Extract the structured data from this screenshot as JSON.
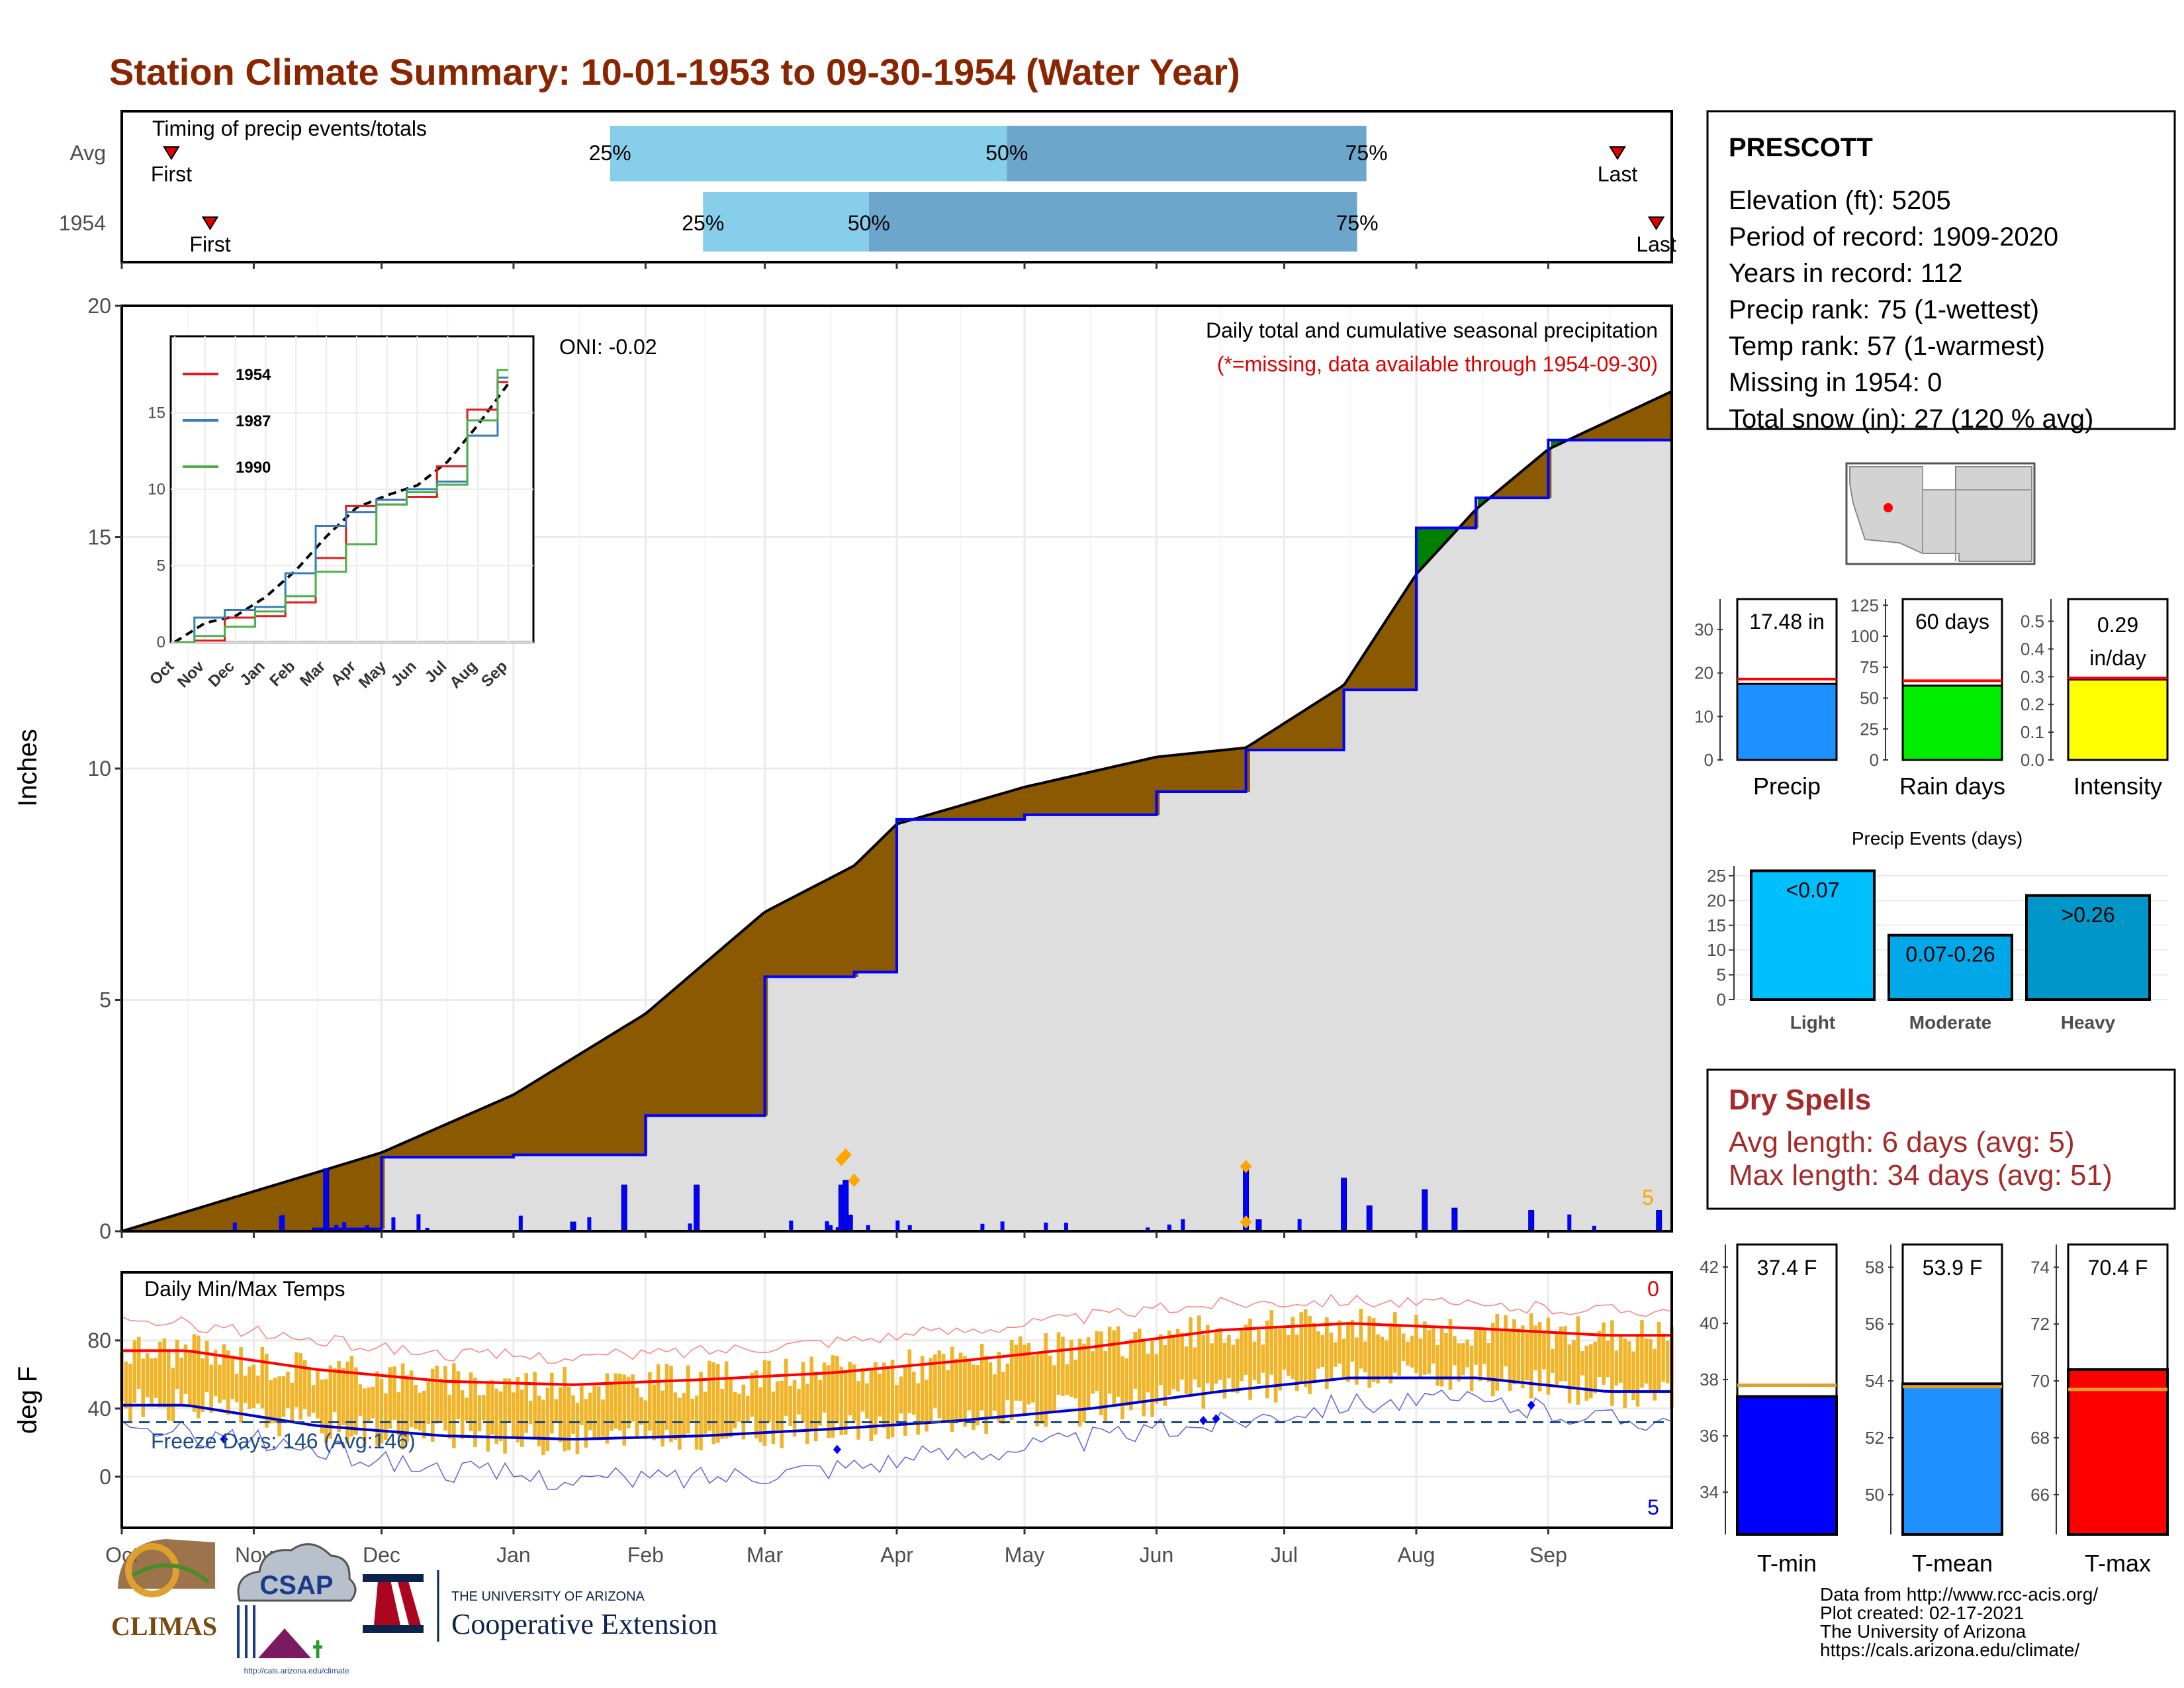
{
  "title": "Station Climate Summary: 10-01-1953 to 09-30-1954 (Water Year)",
  "timing": {
    "title": "Timing of precip events/totals",
    "rows": [
      {
        "label": "Avg",
        "first_label": "First",
        "last_label": "Last",
        "p25_label": "25%",
        "p50_label": "50%",
        "p75_label": "75%",
        "first": 0.032,
        "p25": 0.315,
        "p50": 0.571,
        "p75": 0.803,
        "last": 0.965
      },
      {
        "label": "1954",
        "first_label": "First",
        "last_label": "Last",
        "p25_label": "25%",
        "p50_label": "50%",
        "p75_label": "75%",
        "first": 0.057,
        "p25": 0.375,
        "p50": 0.482,
        "p75": 0.797,
        "last": 0.99
      }
    ]
  },
  "precip_panel": {
    "ylabel": "Inches",
    "caption1": "Daily total and cumulative seasonal precipitation",
    "caption2": "(*=missing, data available through 1954-09-30)",
    "oni_label": "ONI: -0.02",
    "corner_count": "5",
    "colors": {
      "above": "#008000",
      "below": "#8b5a00",
      "fill": "#dedede",
      "line": "#0000ff"
    }
  },
  "inset": {
    "legend": [
      {
        "name": "1954",
        "color": "#e41a1c"
      },
      {
        "name": "1987",
        "color": "#377eb8"
      },
      {
        "name": "1990",
        "color": "#4daf4a"
      }
    ],
    "months": [
      "Oct",
      "Nov",
      "Dec",
      "Jan",
      "Feb",
      "Mar",
      "Apr",
      "May",
      "Jun",
      "Jul",
      "Aug",
      "Sep"
    ],
    "yticks": [
      "0",
      "5",
      "10",
      "15"
    ]
  },
  "temp_panel": {
    "ylabel": "deg F",
    "title": "Daily Min/Max Temps",
    "freeze_label": "Freeze Days: 146 (Avg:146)",
    "corner_top": "0",
    "corner_bottom": "5",
    "yticks": [
      "0",
      "40",
      "80"
    ]
  },
  "months": [
    "Oct",
    "Nov",
    "Dec",
    "Jan",
    "Feb",
    "Mar",
    "Apr",
    "May",
    "Jun",
    "Jul",
    "Aug",
    "Sep"
  ],
  "station": {
    "name": "PRESCOTT",
    "lines": [
      "Elevation (ft): 5205",
      "Period of record: 1909-2020",
      "Years in record: 112",
      "Precip rank: 75 (1-wettest)",
      "Temp rank: 57 (1-warmest)",
      "Missing in 1954: 0",
      "Total snow (in): 27 (120 % avg)"
    ]
  },
  "summary_bars": [
    {
      "name": "Precip",
      "value_label": "17.48 in",
      "value": 17.48,
      "avg": 18.6,
      "max": 37,
      "ticks": [
        "0",
        "10",
        "20",
        "30"
      ],
      "color": "#1e90ff"
    },
    {
      "name": "Rain days",
      "value_label": "60 days",
      "value": 60,
      "avg": 64,
      "max": 130,
      "ticks": [
        "0",
        "25",
        "50",
        "75",
        "100",
        "125"
      ],
      "color": "#00ee00"
    },
    {
      "name": "Intensity",
      "value_label": "0.29 in/day",
      "value": 0.29,
      "avg": 0.295,
      "max": 0.58,
      "ticks": [
        "0.0",
        "0.1",
        "0.2",
        "0.3",
        "0.4",
        "0.5"
      ],
      "color": "#ffff00"
    }
  ],
  "events": {
    "title": "Precip Events (days)",
    "bars": [
      {
        "name": "Light",
        "label": "<0.07",
        "value": 26,
        "color": "#00bfff"
      },
      {
        "name": "Moderate",
        "label": "0.07-0.26",
        "value": 13,
        "color": "#00a8e8"
      },
      {
        "name": "Heavy",
        "label": ">0.26",
        "value": 21,
        "color": "#0096c8"
      }
    ],
    "ticks": [
      "0",
      "5",
      "10",
      "15",
      "20",
      "25"
    ]
  },
  "dry_spells": {
    "title": "Dry Spells",
    "avg_line": "Avg length: 6 days (avg: 5)",
    "max_line": "Max length: 34 days (avg: 51)"
  },
  "temp_bars": [
    {
      "name": "T-min",
      "value_label": "37.4 F",
      "value": 37.4,
      "avg": 37.8,
      "min": 32.5,
      "max": 42.8,
      "ticks": [
        "34",
        "36",
        "38",
        "40",
        "42"
      ],
      "color": "#0000ff"
    },
    {
      "name": "T-mean",
      "value_label": "53.9 F",
      "value": 53.9,
      "avg": 53.8,
      "min": 48.6,
      "max": 58.8,
      "ticks": [
        "50",
        "52",
        "54",
        "56",
        "58"
      ],
      "color": "#1e90ff"
    },
    {
      "name": "T-max",
      "value_label": "70.4 F",
      "value": 70.4,
      "avg": 69.7,
      "min": 64.6,
      "max": 74.8,
      "ticks": [
        "66",
        "68",
        "70",
        "72",
        "74"
      ],
      "color": "#ff0000"
    }
  ],
  "footer": {
    "lines": [
      "Data from http://www.rcc-acis.org/",
      "Plot created: 02-17-2021",
      "The University of Arizona",
      "https://cals.arizona.edu/climate/"
    ],
    "logos": {
      "climas": "CLIMAS",
      "csap": "CSAP",
      "csap_url": "http://cals.arizona.edu/climate",
      "ua_small": "THE UNIVERSITY OF ARIZONA",
      "ua_big": "Cooperative Extension"
    }
  },
  "chart_data": [
    {
      "type": "area",
      "title": "Daily total and cumulative seasonal precipitation",
      "ylabel": "Inches",
      "ylim": [
        0,
        20
      ],
      "x_dates": [
        "1953-10-01",
        "1953-11-15",
        "1953-12-01",
        "1954-01-01",
        "1954-02-01",
        "1954-03-01",
        "1954-03-22",
        "1954-04-01",
        "1954-05-01",
        "1954-06-01",
        "1954-06-22",
        "1954-07-15",
        "1954-08-01",
        "1954-08-15",
        "1954-09-01",
        "1954-09-30"
      ],
      "series": [
        {
          "name": "avg cumulative",
          "values": [
            0,
            1.25,
            1.7,
            2.95,
            4.7,
            6.9,
            7.9,
            8.8,
            9.6,
            10.25,
            10.45,
            11.8,
            14.2,
            15.6,
            16.9,
            18.15
          ]
        },
        {
          "name": "cumulative",
          "values": [
            0,
            0.05,
            1.6,
            1.65,
            2.5,
            5.5,
            5.6,
            8.9,
            9.0,
            9.5,
            10.4,
            11.7,
            15.2,
            15.85,
            17.1,
            17.48
          ]
        }
      ]
    },
    {
      "type": "bar",
      "title": "Daily precip",
      "x_dates": [
        "1953-11-18",
        "1954-01-15",
        "1954-01-27",
        "1954-02-13",
        "1954-03-19",
        "1954-03-20",
        "1954-03-21",
        "1954-06-22",
        "1954-06-25",
        "1954-07-15",
        "1954-07-21",
        "1954-08-03",
        "1954-08-10",
        "1954-08-28",
        "1954-09-27"
      ],
      "values": [
        1.35,
        0.2,
        1.0,
        1.0,
        1.0,
        1.1,
        0.35,
        1.35,
        0.25,
        1.15,
        0.55,
        0.9,
        0.5,
        0.45,
        0.45
      ]
    },
    {
      "type": "line",
      "title": "Daily Min/Max Temps",
      "ylabel": "deg F",
      "months": [
        "Oct",
        "Nov",
        "Dec",
        "Jan",
        "Feb",
        "Mar",
        "Apr",
        "May",
        "Jun",
        "Jul",
        "Aug",
        "Sep"
      ],
      "series": [
        {
          "name": "avg max",
          "values": [
            74,
            63,
            56,
            54,
            57,
            61,
            68,
            76,
            86,
            90,
            87,
            83
          ]
        },
        {
          "name": "avg min",
          "values": [
            42,
            30,
            24,
            22,
            24,
            28,
            33,
            40,
            50,
            58,
            58,
            50
          ]
        },
        {
          "name": "record max",
          "values": [
            90,
            80,
            72,
            70,
            74,
            80,
            86,
            94,
            102,
            104,
            100,
            98
          ]
        },
        {
          "name": "record min",
          "values": [
            26,
            16,
            4,
            -2,
            0,
            6,
            14,
            22,
            32,
            44,
            44,
            34
          ]
        }
      ]
    },
    {
      "type": "line",
      "title": "inset cumulative",
      "categories": [
        "Oct",
        "Nov",
        "Dec",
        "Jan",
        "Feb",
        "Mar",
        "Apr",
        "May",
        "Jun",
        "Jul",
        "Aug",
        "Sep"
      ],
      "series": [
        {
          "name": "1954",
          "values": [
            0,
            0.1,
            1.6,
            1.7,
            2.6,
            5.5,
            8.9,
            9.0,
            9.5,
            11.5,
            15.2,
            17.0
          ]
        },
        {
          "name": "1987",
          "values": [
            0,
            1.6,
            2.1,
            2.3,
            4.5,
            7.6,
            8.5,
            9.3,
            10.0,
            10.5,
            13.5,
            17.3
          ]
        },
        {
          "name": "1990",
          "values": [
            0,
            0.4,
            1.0,
            2.0,
            3.0,
            4.6,
            6.4,
            9.0,
            9.8,
            10.3,
            14.5,
            17.8
          ]
        }
      ]
    }
  ]
}
